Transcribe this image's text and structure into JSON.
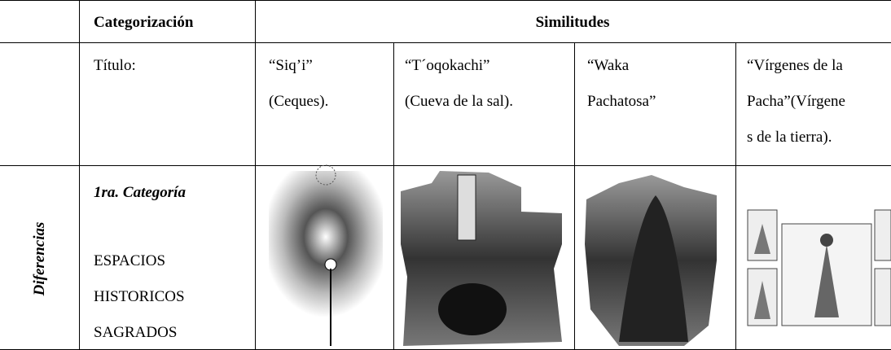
{
  "table": {
    "header": {
      "categorization": "Categorización",
      "similarities": "Similitudes"
    },
    "title_row": {
      "label": "Título:",
      "cells": [
        [
          "“Siq’i”",
          "(Ceques)."
        ],
        [
          "“T´oqokachi”",
          "(Cueva de la sal)."
        ],
        [
          "“Waka",
          "Pachatosa”"
        ],
        [
          "“Vírgenes de la",
          "Pacha”(Vírgene",
          "s de la tierra)."
        ]
      ]
    },
    "category_row": {
      "side_label": "Diferencias",
      "heading": "1ra. Categoría",
      "lines": [
        "ESPACIOS",
        "HISTORICOS",
        "SAGRADOS"
      ]
    }
  }
}
